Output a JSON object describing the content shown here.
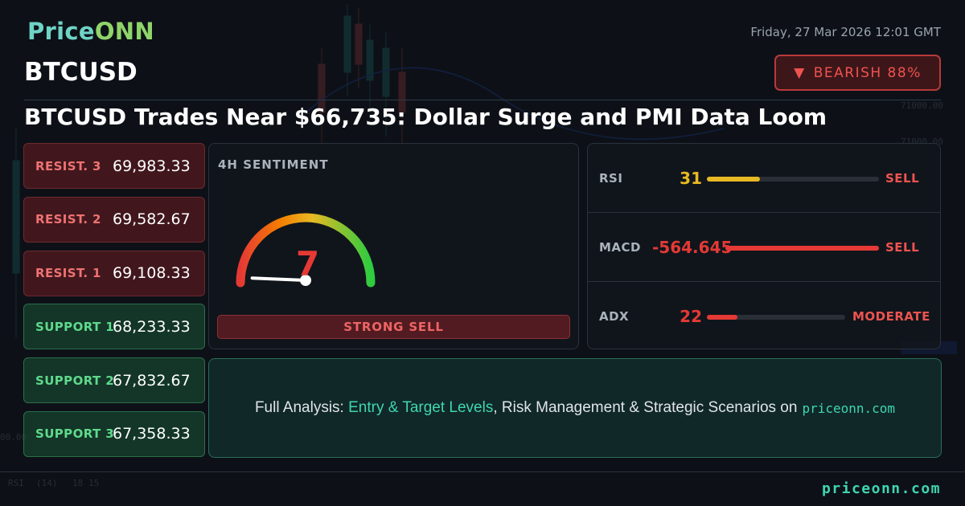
{
  "header": {
    "logo_price": "Price",
    "logo_onn": "ONN",
    "datetime": "Friday, 27 Mar 2026 12:01 GMT",
    "symbol": "BTCUSD",
    "badge": {
      "icon": "triangle-down-icon",
      "label": "BEARISH 88%"
    },
    "headline": "BTCUSD Trades Near $66,735: Dollar Surge and PMI Data Loom"
  },
  "levels": [
    {
      "label": "RESIST. 3",
      "value": "69,983.33",
      "kind": "resist"
    },
    {
      "label": "RESIST. 2",
      "value": "69,582.67",
      "kind": "resist"
    },
    {
      "label": "RESIST. 1",
      "value": "69,108.33",
      "kind": "resist"
    },
    {
      "label": "SUPPORT 1",
      "value": "68,233.33",
      "kind": "support"
    },
    {
      "label": "SUPPORT 2",
      "value": "67,832.67",
      "kind": "support"
    },
    {
      "label": "SUPPORT 3",
      "value": "67,358.33",
      "kind": "support"
    }
  ],
  "sentiment": {
    "title": "4H SENTIMENT",
    "score": "7",
    "score_value": 7,
    "score_max": 100,
    "verdict": "STRONG SELL"
  },
  "indicators": [
    {
      "name": "RSI",
      "value": "31",
      "fill": 0.31,
      "color": "#e8b923",
      "signal": "SELL"
    },
    {
      "name": "MACD",
      "value": "-564.645",
      "fill": 1.0,
      "color": "#e53935",
      "signal": "SELL"
    },
    {
      "name": "ADX",
      "value": "22",
      "fill": 0.22,
      "color": "#e53935",
      "signal": "MODERATE"
    }
  ],
  "cta": {
    "prefix": "Full Analysis:",
    "highlight": "Entry & Target Levels",
    "middle": ", Risk Management & Strategic Scenarios on",
    "site": "priceonn.com"
  },
  "footer": {
    "site": "priceonn.com"
  },
  "colors": {
    "bearish": "#ef5350",
    "bullish": "#5fd98c",
    "accent": "#3fd6b0"
  }
}
